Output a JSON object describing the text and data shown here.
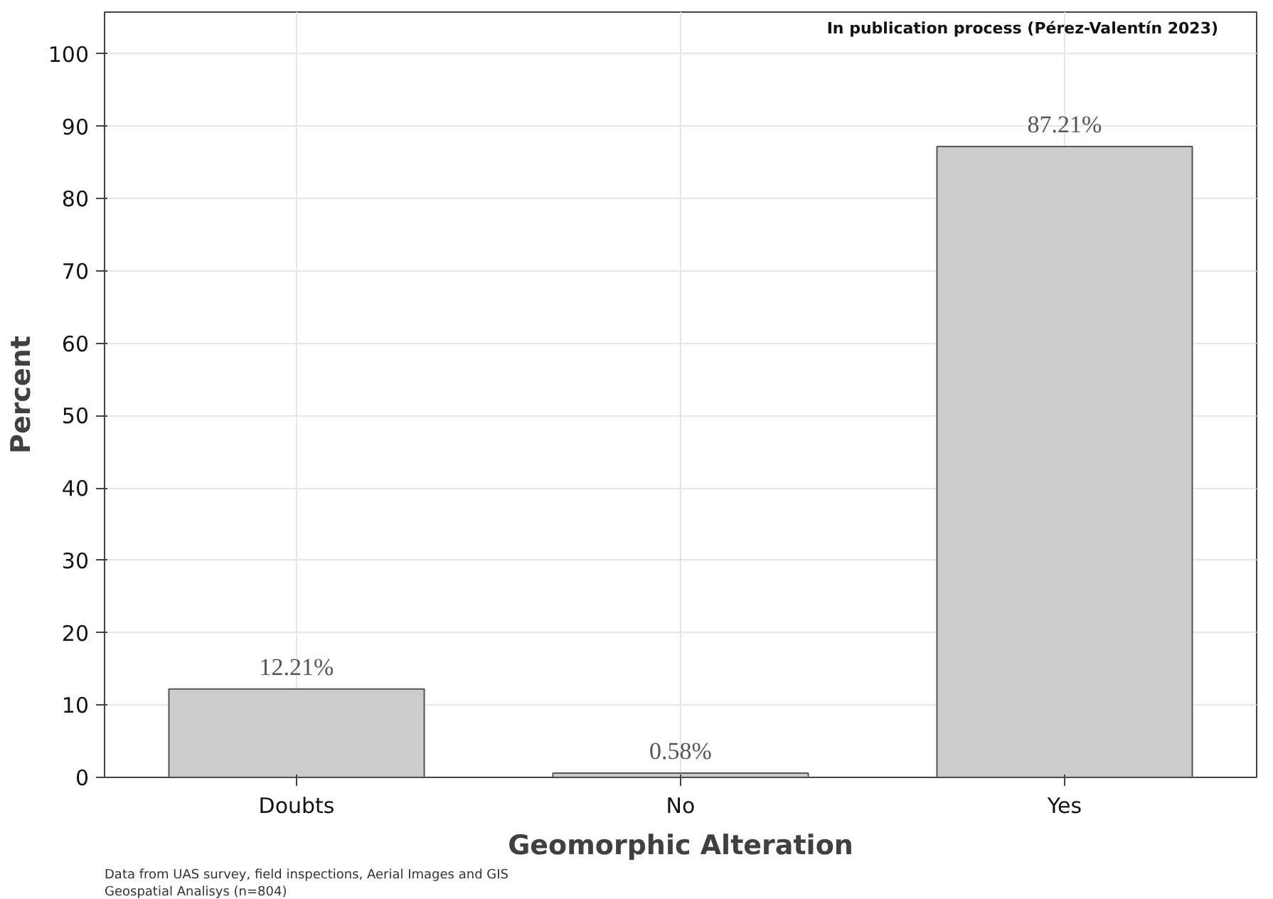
{
  "chart_data": {
    "type": "bar",
    "xlabel": "Geomorphic Alteration",
    "ylabel": "Percent",
    "categories": [
      "Doubts",
      "No",
      "Yes"
    ],
    "values": [
      12.21,
      0.58,
      87.21
    ],
    "value_labels": [
      "12.21%",
      "0.58%",
      "87.21%"
    ],
    "color": "#cccccc",
    "ylim": [
      0,
      105.8
    ],
    "yticks": [
      0,
      10,
      20,
      30,
      40,
      50,
      60,
      70,
      80,
      90,
      100
    ],
    "grid": true,
    "annotations": [
      "In publication process (Pérez-Valentín 2023)",
      "Data from UAS survey, field inspections, Aerial Images and GIS\nGeospatial Analisys (n=804)"
    ]
  }
}
